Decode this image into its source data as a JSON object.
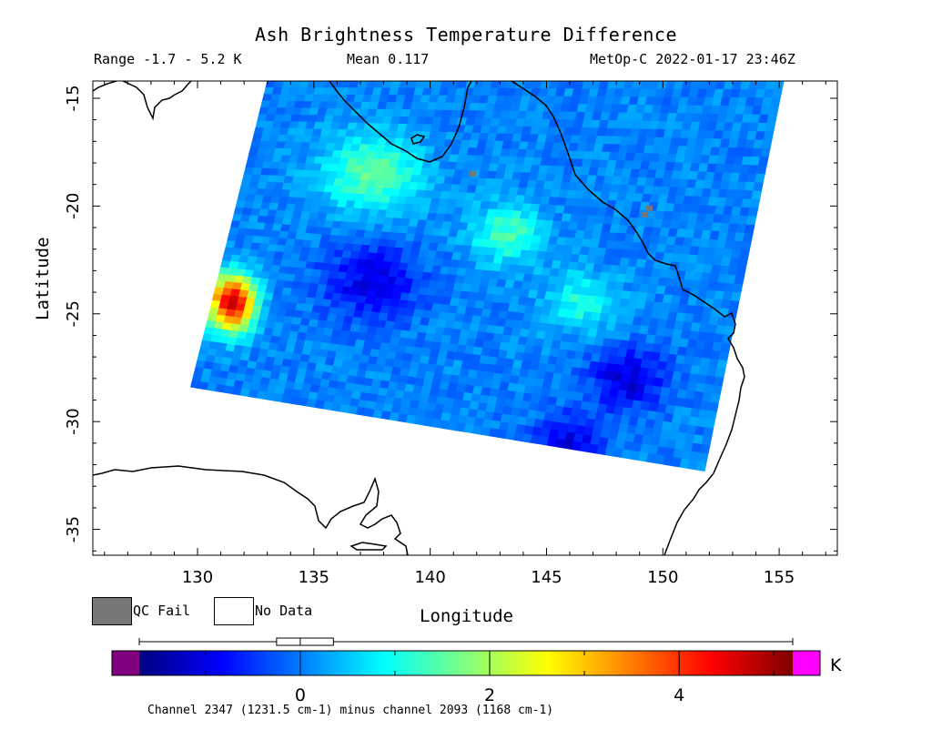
{
  "header": {
    "title": "Ash Brightness Temperature Difference",
    "range_text": "Range -1.7 - 5.2 K",
    "mean_text": "Mean 0.117",
    "satellite_text": "MetOp-C 2022-01-17 23:46Z"
  },
  "legend": {
    "qc_fail_label": "QC Fail",
    "no_data_label": "No Data",
    "qc_fail_color": "#777777",
    "no_data_color": "#ffffff"
  },
  "colorbar": {
    "unit": "K",
    "caption": "Channel 2347 (1231.5 cm-1) minus channel 2093 (1168 cm-1)",
    "tick_labels": [
      "0",
      "2",
      "4"
    ],
    "tick_values": [
      0,
      2,
      4
    ],
    "range": [
      -1.7,
      5.2
    ],
    "under_color": "#800080",
    "over_color": "#ff00ff",
    "boxplot": {
      "min": -1.7,
      "q1": -0.25,
      "median": 0.0,
      "q3": 0.35,
      "max": 5.2
    }
  },
  "chart_data": {
    "type": "heatmap",
    "title": "Ash Brightness Temperature Difference",
    "xlabel": "Longitude",
    "ylabel": "Latitude",
    "xlim": [
      125.5,
      157.5
    ],
    "ylim": [
      -36.2,
      -14.2
    ],
    "xticks": [
      130,
      135,
      140,
      145,
      150,
      155
    ],
    "yticks": [
      -15,
      -20,
      -25,
      -30,
      -35
    ],
    "xtick_labels": [
      "130",
      "135",
      "140",
      "145",
      "150",
      "155"
    ],
    "ytick_labels": [
      "-15",
      "-20",
      "-25",
      "-30",
      "-35"
    ],
    "swath_corners": [
      [
        133.0,
        -14.2
      ],
      [
        155.2,
        -14.2
      ],
      [
        151.8,
        -32.3
      ],
      [
        129.7,
        -28.4
      ]
    ],
    "grid": false,
    "features": [
      {
        "name": "hotspot",
        "lon": 131.5,
        "lat": -24.5,
        "value": 4.8
      },
      {
        "name": "positive-band",
        "lon": 137.5,
        "lat": -18.5,
        "value": 1.5
      },
      {
        "name": "positive-ring",
        "lon": 143.3,
        "lat": -21.3,
        "value": 1.3
      },
      {
        "name": "positive-patch",
        "lon": 146.5,
        "lat": -24.5,
        "value": 1.0
      },
      {
        "name": "negative-core",
        "lon": 148.5,
        "lat": -28.0,
        "value": -1.2
      },
      {
        "name": "negative-band",
        "lon": 137.5,
        "lat": -23.5,
        "value": -1.0
      },
      {
        "name": "negative-spot",
        "lon": 146.0,
        "lat": -31.0,
        "value": -1.0
      }
    ],
    "qc_fail_points": [
      [
        141.8,
        -18.5
      ],
      [
        149.4,
        -20.1
      ],
      [
        149.2,
        -20.4
      ]
    ]
  }
}
